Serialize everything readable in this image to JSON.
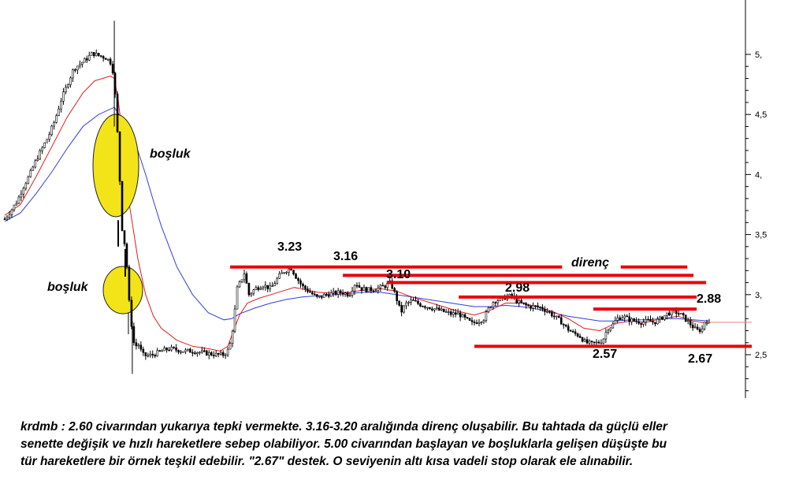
{
  "chart_data": {
    "type": "candlestick",
    "ticker": "krdmb",
    "ylim": [
      2.17,
      5.5
    ],
    "y_ticks": [
      {
        "v": 5.0,
        "label": "5,"
      },
      {
        "v": 4.5,
        "label": "4,5"
      },
      {
        "v": 4.0,
        "label": "4,"
      },
      {
        "v": 3.5,
        "label": "3,5"
      },
      {
        "v": 3.0,
        "label": "3,"
      },
      {
        "v": 2.5,
        "label": "2,5"
      }
    ],
    "last_close": 2.77,
    "price_path": [
      [
        0,
        3.63
      ],
      [
        8,
        3.7
      ],
      [
        16,
        3.78
      ],
      [
        24,
        3.9
      ],
      [
        32,
        4.0
      ],
      [
        40,
        4.12
      ],
      [
        48,
        4.22
      ],
      [
        56,
        4.32
      ],
      [
        64,
        4.45
      ],
      [
        72,
        4.62
      ],
      [
        80,
        4.75
      ],
      [
        88,
        4.88
      ],
      [
        96,
        4.92
      ],
      [
        104,
        4.96
      ],
      [
        112,
        5.01
      ],
      [
        120,
        4.99
      ],
      [
        130,
        4.97
      ],
      [
        137,
        4.92
      ],
      [
        140,
        4.75
      ],
      [
        143,
        4.48
      ],
      [
        150,
        3.55
      ],
      [
        155,
        3.35
      ],
      [
        158,
        3.0
      ],
      [
        162,
        2.75
      ],
      [
        166,
        2.55
      ],
      [
        170,
        2.6
      ],
      [
        176,
        2.5
      ],
      [
        182,
        2.49
      ],
      [
        190,
        2.5
      ],
      [
        200,
        2.53
      ],
      [
        210,
        2.55
      ],
      [
        220,
        2.54
      ],
      [
        230,
        2.53
      ],
      [
        240,
        2.53
      ],
      [
        250,
        2.52
      ],
      [
        260,
        2.51
      ],
      [
        270,
        2.5
      ],
      [
        280,
        2.5
      ],
      [
        287,
        2.55
      ],
      [
        292,
        2.75
      ],
      [
        297,
        3.05
      ],
      [
        302,
        3.12
      ],
      [
        306,
        3.18
      ],
      [
        312,
        3.0
      ],
      [
        320,
        3.05
      ],
      [
        330,
        3.08
      ],
      [
        340,
        3.05
      ],
      [
        350,
        3.15
      ],
      [
        358,
        3.2
      ],
      [
        366,
        3.22
      ],
      [
        372,
        3.15
      ],
      [
        380,
        3.07
      ],
      [
        390,
        3.02
      ],
      [
        400,
        2.97
      ],
      [
        410,
        3.0
      ],
      [
        420,
        3.01
      ],
      [
        430,
        3.02
      ],
      [
        440,
        3.0
      ],
      [
        448,
        3.1
      ],
      [
        455,
        3.05
      ],
      [
        465,
        3.04
      ],
      [
        475,
        3.05
      ],
      [
        485,
        3.07
      ],
      [
        493,
        3.1
      ],
      [
        500,
        2.98
      ],
      [
        506,
        2.85
      ],
      [
        512,
        2.92
      ],
      [
        520,
        2.95
      ],
      [
        530,
        2.92
      ],
      [
        540,
        2.9
      ],
      [
        550,
        2.88
      ],
      [
        560,
        2.86
      ],
      [
        570,
        2.84
      ],
      [
        580,
        2.84
      ],
      [
        588,
        2.8
      ],
      [
        597,
        2.76
      ],
      [
        605,
        2.78
      ],
      [
        612,
        2.8
      ],
      [
        618,
        2.88
      ],
      [
        625,
        2.95
      ],
      [
        633,
        2.96
      ],
      [
        640,
        2.98
      ],
      [
        648,
        2.99
      ],
      [
        655,
        2.94
      ],
      [
        662,
        2.92
      ],
      [
        670,
        2.9
      ],
      [
        678,
        2.9
      ],
      [
        686,
        2.89
      ],
      [
        694,
        2.86
      ],
      [
        702,
        2.82
      ],
      [
        710,
        2.78
      ],
      [
        718,
        2.72
      ],
      [
        726,
        2.68
      ],
      [
        734,
        2.66
      ],
      [
        742,
        2.6
      ],
      [
        750,
        2.59
      ],
      [
        758,
        2.6
      ],
      [
        764,
        2.62
      ],
      [
        770,
        2.72
      ],
      [
        776,
        2.74
      ],
      [
        782,
        2.8
      ],
      [
        790,
        2.82
      ],
      [
        798,
        2.79
      ],
      [
        806,
        2.78
      ],
      [
        814,
        2.77
      ],
      [
        822,
        2.78
      ],
      [
        830,
        2.77
      ],
      [
        838,
        2.8
      ],
      [
        846,
        2.84
      ],
      [
        854,
        2.86
      ],
      [
        860,
        2.85
      ],
      [
        866,
        2.82
      ],
      [
        872,
        2.78
      ],
      [
        878,
        2.74
      ],
      [
        884,
        2.7
      ],
      [
        890,
        2.71
      ],
      [
        896,
        2.73
      ],
      [
        900,
        2.77
      ]
    ],
    "ma_fast": [
      [
        0,
        3.66
      ],
      [
        20,
        3.75
      ],
      [
        40,
        3.98
      ],
      [
        60,
        4.23
      ],
      [
        80,
        4.48
      ],
      [
        100,
        4.68
      ],
      [
        115,
        4.78
      ],
      [
        125,
        4.8
      ],
      [
        135,
        4.82
      ],
      [
        140,
        4.8
      ],
      [
        145,
        4.62
      ],
      [
        150,
        4.35
      ],
      [
        155,
        4.0
      ],
      [
        160,
        3.72
      ],
      [
        170,
        3.3
      ],
      [
        180,
        3.0
      ],
      [
        190,
        2.82
      ],
      [
        200,
        2.72
      ],
      [
        220,
        2.62
      ],
      [
        240,
        2.57
      ],
      [
        260,
        2.55
      ],
      [
        275,
        2.53
      ],
      [
        285,
        2.57
      ],
      [
        290,
        2.66
      ],
      [
        300,
        2.83
      ],
      [
        310,
        2.93
      ],
      [
        325,
        2.97
      ],
      [
        340,
        3.0
      ],
      [
        355,
        3.03
      ],
      [
        370,
        3.06
      ],
      [
        385,
        3.04
      ],
      [
        400,
        3.02
      ],
      [
        420,
        3.01
      ],
      [
        440,
        3.02
      ],
      [
        460,
        3.04
      ],
      [
        480,
        3.05
      ],
      [
        500,
        3.03
      ],
      [
        520,
        2.98
      ],
      [
        540,
        2.94
      ],
      [
        560,
        2.9
      ],
      [
        580,
        2.86
      ],
      [
        600,
        2.83
      ],
      [
        620,
        2.87
      ],
      [
        640,
        2.93
      ],
      [
        660,
        2.93
      ],
      [
        680,
        2.9
      ],
      [
        700,
        2.86
      ],
      [
        720,
        2.8
      ],
      [
        740,
        2.72
      ],
      [
        760,
        2.7
      ],
      [
        780,
        2.76
      ],
      [
        800,
        2.78
      ],
      [
        820,
        2.77
      ],
      [
        840,
        2.8
      ],
      [
        860,
        2.82
      ],
      [
        880,
        2.78
      ],
      [
        900,
        2.76
      ]
    ],
    "ma_slow": [
      [
        0,
        3.61
      ],
      [
        20,
        3.68
      ],
      [
        40,
        3.84
      ],
      [
        60,
        4.02
      ],
      [
        80,
        4.22
      ],
      [
        100,
        4.4
      ],
      [
        120,
        4.5
      ],
      [
        140,
        4.56
      ],
      [
        145,
        4.51
      ],
      [
        150,
        4.46
      ],
      [
        160,
        4.36
      ],
      [
        170,
        4.2
      ],
      [
        180,
        4.0
      ],
      [
        190,
        3.78
      ],
      [
        200,
        3.57
      ],
      [
        220,
        3.23
      ],
      [
        240,
        3.0
      ],
      [
        260,
        2.85
      ],
      [
        280,
        2.79
      ],
      [
        290,
        2.8
      ],
      [
        300,
        2.84
      ],
      [
        320,
        2.89
      ],
      [
        340,
        2.93
      ],
      [
        360,
        2.96
      ],
      [
        380,
        2.98
      ],
      [
        400,
        2.99
      ],
      [
        420,
        3.0
      ],
      [
        440,
        3.01
      ],
      [
        460,
        3.02
      ],
      [
        480,
        3.02
      ],
      [
        500,
        3.0
      ],
      [
        520,
        2.98
      ],
      [
        540,
        2.96
      ],
      [
        560,
        2.94
      ],
      [
        580,
        2.92
      ],
      [
        600,
        2.9
      ],
      [
        620,
        2.9
      ],
      [
        640,
        2.91
      ],
      [
        660,
        2.9
      ],
      [
        680,
        2.88
      ],
      [
        700,
        2.85
      ],
      [
        720,
        2.82
      ],
      [
        740,
        2.8
      ],
      [
        760,
        2.78
      ],
      [
        780,
        2.78
      ],
      [
        800,
        2.79
      ],
      [
        820,
        2.79
      ],
      [
        840,
        2.8
      ],
      [
        860,
        2.8
      ],
      [
        880,
        2.79
      ],
      [
        900,
        2.78
      ]
    ],
    "levels": [
      {
        "value": 3.23,
        "label": "3.23",
        "type": "resistance"
      },
      {
        "value": 3.16,
        "label": "3.16",
        "type": "resistance"
      },
      {
        "value": 3.1,
        "label": "3.10",
        "type": "resistance"
      },
      {
        "value": 2.98,
        "label": "2.98",
        "type": "resistance"
      },
      {
        "value": 2.88,
        "label": "2.88",
        "type": "resistance"
      },
      {
        "value": 2.57,
        "label": "2.57",
        "type": "support"
      },
      {
        "value": 2.67,
        "label": "2.67",
        "type": "support"
      }
    ],
    "annotations": {
      "resistance_label": "direnç",
      "gap_label_upper": "boşluk",
      "gap_label_lower": "boşluk"
    },
    "colors": {
      "candle": "#000000",
      "ma_fast": "#e21b1b",
      "ma_slow": "#2f3fd9",
      "level_line": "#e8000b",
      "gap_fill": "#f3e41a",
      "last_price_line": "#f08080"
    }
  },
  "caption": {
    "line1": "krdmb : 2.60 civarından yukarıya tepki vermekte. 3.16-3.20 aralığında direnç oluşabilir. Bu tahtada da güçlü eller",
    "line2": "senette değişik ve hızlı hareketlere sebep olabiliyor. 5.00 civarından başlayan ve boşluklarla gelişen düşüşte bu",
    "line3": "tür hareketlere bir örnek teşkil edebilir.  \"2.67\" destek. O seviyenin altı kısa vadeli stop olarak ele alınabilir."
  }
}
